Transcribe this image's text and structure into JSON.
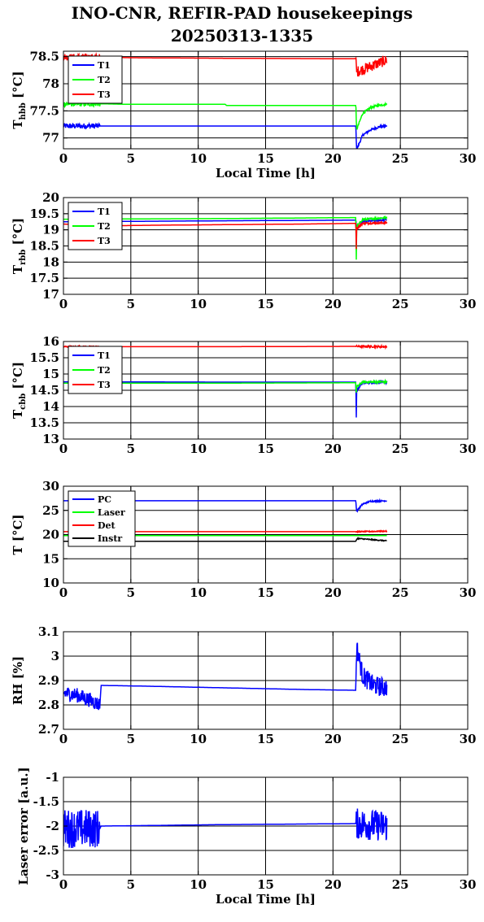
{
  "figure": {
    "title_line1": "INO-CNR, REFIR-PAD housekeepings",
    "title_line2": "20250313-1335"
  },
  "chart_data": [
    {
      "type": "line",
      "ylabel": "T",
      "ylabel_sub": "hbb",
      "ylabel_unit": " [°C]",
      "xlabel": "Local Time [h]",
      "xlim": [
        0,
        30
      ],
      "ylim": [
        76.8,
        78.6
      ],
      "yticks": [
        77,
        77.5,
        78,
        78.5
      ],
      "ytick_labels": [
        "77",
        "77.5",
        "78",
        "78.5"
      ],
      "xticks": [
        0,
        5,
        10,
        15,
        20,
        25,
        30
      ],
      "grid": true,
      "legend_position": "top-left",
      "series": [
        {
          "name": "T1",
          "color": "#0000ff",
          "x": [
            0,
            2.7,
            5,
            12,
            21.7,
            21.75,
            22.2,
            22.8,
            23.5,
            24
          ],
          "y": [
            77.22,
            77.22,
            77.22,
            77.22,
            77.22,
            76.78,
            77.05,
            77.15,
            77.21,
            77.22
          ],
          "noise": [
            [
              0,
              2.7,
              0.05
            ],
            [
              21.7,
              24,
              0.02
            ]
          ]
        },
        {
          "name": "T2",
          "color": "#00ff00",
          "x": [
            0,
            2.7,
            5,
            12,
            12.1,
            21.7,
            21.75,
            22.2,
            22.8,
            23.5,
            24
          ],
          "y": [
            77.63,
            77.63,
            77.62,
            77.62,
            77.6,
            77.6,
            77.15,
            77.45,
            77.56,
            77.61,
            77.62
          ],
          "noise": [
            [
              0,
              2.7,
              0.05
            ],
            [
              21.7,
              24,
              0.02
            ]
          ]
        },
        {
          "name": "T3",
          "color": "#ff0000",
          "x": [
            0,
            2.7,
            5,
            12,
            21.7,
            21.75,
            24
          ],
          "y": [
            78.49,
            78.49,
            78.48,
            78.47,
            78.46,
            78.22,
            78.44
          ],
          "noise": [
            [
              0,
              2.7,
              0.06
            ],
            [
              21.7,
              24,
              0.1
            ]
          ]
        }
      ]
    },
    {
      "type": "line",
      "ylabel": "T",
      "ylabel_sub": "rbb",
      "ylabel_unit": " [°C]",
      "xlabel": "",
      "xlim": [
        0,
        30
      ],
      "ylim": [
        17,
        20
      ],
      "yticks": [
        17,
        17.5,
        18,
        18.5,
        19,
        19.5,
        20
      ],
      "ytick_labels": [
        "17",
        "17.5",
        "18",
        "18.5",
        "19",
        "19.5",
        "20"
      ],
      "xticks": [
        0,
        5,
        10,
        15,
        20,
        25,
        30
      ],
      "grid": true,
      "legend_position": "top-left",
      "series": [
        {
          "name": "T1",
          "color": "#0000ff",
          "x": [
            0,
            12,
            21.7,
            21.75,
            22.2,
            24
          ],
          "y": [
            19.25,
            19.28,
            19.3,
            19.0,
            19.25,
            19.32
          ],
          "noise": [
            [
              21.7,
              24,
              0.03
            ]
          ]
        },
        {
          "name": "T2",
          "color": "#00ff00",
          "x": [
            0,
            12,
            21.7,
            21.73,
            21.76,
            22.2,
            24
          ],
          "y": [
            19.33,
            19.35,
            19.38,
            17.95,
            19.1,
            19.32,
            19.38
          ],
          "noise": [
            [
              21.7,
              24,
              0.03
            ]
          ]
        },
        {
          "name": "T3",
          "color": "#ff0000",
          "x": [
            0,
            3,
            6,
            12,
            18,
            21.7,
            21.73,
            21.76,
            22.2,
            24
          ],
          "y": [
            19.18,
            19.12,
            19.14,
            19.16,
            19.18,
            19.2,
            18.35,
            19.05,
            19.2,
            19.22
          ],
          "noise": [
            [
              21.7,
              24,
              0.03
            ]
          ]
        }
      ]
    },
    {
      "type": "line",
      "ylabel": "T",
      "ylabel_sub": "cbb",
      "ylabel_unit": " [°C]",
      "xlabel": "",
      "xlim": [
        0,
        30
      ],
      "ylim": [
        13,
        16
      ],
      "yticks": [
        13,
        13.5,
        14,
        14.5,
        15,
        15.5,
        16
      ],
      "ytick_labels": [
        "13",
        "13.5",
        "14",
        "14.5",
        "15",
        "15.5",
        "16"
      ],
      "xticks": [
        0,
        5,
        10,
        15,
        20,
        25,
        30
      ],
      "grid": true,
      "legend_position": "top-left",
      "series": [
        {
          "name": "T1",
          "color": "#0000ff",
          "x": [
            0,
            12,
            21.7,
            21.73,
            21.76,
            22.2,
            24
          ],
          "y": [
            14.76,
            14.75,
            14.75,
            13.55,
            14.5,
            14.73,
            14.75
          ],
          "noise": [
            [
              21.7,
              24,
              0.04
            ]
          ]
        },
        {
          "name": "T2",
          "color": "#00ff00",
          "x": [
            0,
            12,
            21.7,
            21.73,
            21.76,
            22.2,
            24
          ],
          "y": [
            14.72,
            14.72,
            14.73,
            14.4,
            14.6,
            14.75,
            14.76
          ],
          "noise": [
            [
              21.7,
              24,
              0.04
            ]
          ]
        },
        {
          "name": "T3",
          "color": "#ff0000",
          "x": [
            0,
            12,
            21.7,
            24
          ],
          "y": [
            15.84,
            15.84,
            15.85,
            15.84
          ],
          "noise": [
            [
              0,
              2.7,
              0.02
            ],
            [
              21.7,
              24,
              0.03
            ]
          ]
        }
      ]
    },
    {
      "type": "line",
      "ylabel": "T [°C]",
      "ylabel_sub": "",
      "ylabel_unit": "",
      "xlabel": "",
      "xlim": [
        0,
        30
      ],
      "ylim": [
        10,
        30
      ],
      "yticks": [
        10,
        15,
        20,
        25,
        30
      ],
      "ytick_labels": [
        "10",
        "15",
        "20",
        "25",
        "30"
      ],
      "xticks": [
        0,
        5,
        10,
        15,
        20,
        25,
        30
      ],
      "grid": true,
      "legend_position": "top-left",
      "series": [
        {
          "name": "PC",
          "color": "#0000ff",
          "x": [
            0,
            12,
            21.7,
            21.75,
            22.2,
            22.8,
            24
          ],
          "y": [
            27.0,
            27.0,
            27.0,
            24.8,
            26.3,
            26.9,
            27.0
          ],
          "noise": [
            [
              21.7,
              24,
              0.15
            ]
          ]
        },
        {
          "name": "Laser",
          "color": "#00ff00",
          "x": [
            0,
            12,
            24
          ],
          "y": [
            19.8,
            19.8,
            19.8
          ],
          "noise": []
        },
        {
          "name": "Det",
          "color": "#ff0000",
          "x": [
            0,
            12,
            21.7,
            24
          ],
          "y": [
            20.6,
            20.6,
            20.6,
            20.7
          ],
          "noise": [
            [
              21.7,
              24,
              0.1
            ]
          ]
        },
        {
          "name": "Instr",
          "color": "#000000",
          "x": [
            0,
            12,
            21.7,
            21.8,
            24
          ],
          "y": [
            18.6,
            18.6,
            18.6,
            19.2,
            18.7
          ],
          "noise": [
            [
              21.7,
              24,
              0.1
            ]
          ]
        }
      ]
    },
    {
      "type": "line",
      "ylabel": "RH [%]",
      "ylabel_sub": "",
      "ylabel_unit": "",
      "xlabel": "",
      "xlim": [
        0,
        30
      ],
      "ylim": [
        2.7,
        3.1
      ],
      "yticks": [
        2.7,
        2.8,
        2.9,
        3,
        3.1
      ],
      "ytick_labels": [
        "2.7",
        "2.8",
        "2.9",
        "3",
        "3.1"
      ],
      "xticks": [
        0,
        5,
        10,
        15,
        20,
        25,
        30
      ],
      "grid": true,
      "legend_position": "none",
      "series": [
        {
          "name": "",
          "color": "#0000ff",
          "x": [
            0,
            1,
            2,
            2.7,
            2.8,
            6,
            12,
            18,
            21.7,
            21.75,
            22.2,
            23,
            24
          ],
          "y": [
            2.85,
            2.84,
            2.82,
            2.8,
            2.88,
            2.877,
            2.87,
            2.863,
            2.86,
            3.04,
            2.92,
            2.88,
            2.87
          ],
          "noise": [
            [
              0,
              2.7,
              0.03
            ],
            [
              21.7,
              24,
              0.04
            ]
          ]
        }
      ]
    },
    {
      "type": "line",
      "ylabel": "Laser error [a.u.]",
      "ylabel_sub": "",
      "ylabel_unit": "",
      "xlabel": "Local Time [h]",
      "xlim": [
        0,
        30
      ],
      "ylim": [
        -3,
        -1
      ],
      "yticks": [
        -3,
        -2.5,
        -2,
        -1.5,
        -1
      ],
      "ytick_labels": [
        "-3",
        "-2.5",
        "-2",
        "-1.5",
        "-1"
      ],
      "xticks": [
        0,
        5,
        10,
        15,
        20,
        25,
        30
      ],
      "grid": true,
      "legend_position": "none",
      "series": [
        {
          "name": "",
          "color": "#0000ff",
          "x": [
            0,
            2.7,
            2.8,
            6,
            12,
            21.7,
            24
          ],
          "y": [
            -2.05,
            -2.05,
            -2.0,
            -1.99,
            -1.97,
            -1.95,
            -2.0
          ],
          "noise": [
            [
              0,
              2.7,
              0.4
            ],
            [
              21.7,
              24,
              0.32
            ]
          ]
        }
      ]
    }
  ]
}
